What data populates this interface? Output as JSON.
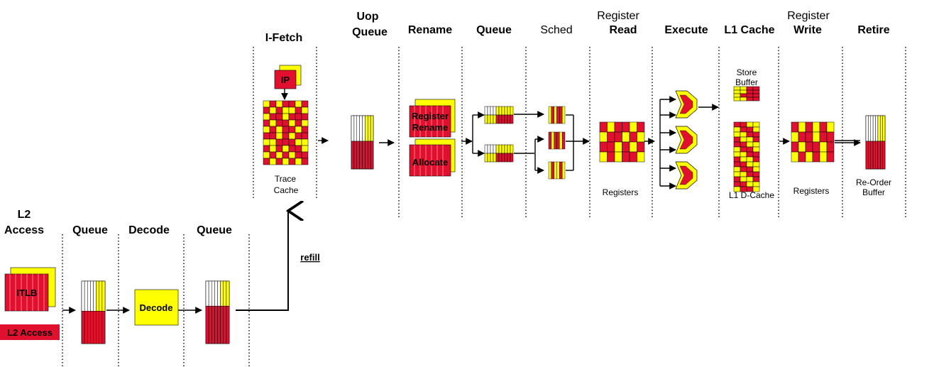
{
  "colors": {
    "red": "#E0102E",
    "yellow": "#FFFF00",
    "line": "#000000"
  },
  "headers": {
    "l2_access": [
      "L2",
      "Access"
    ],
    "queue1": "Queue",
    "decode": "Decode",
    "queue2": "Queue",
    "ifetch": "I-Fetch",
    "uop_queue": [
      "Uop",
      "Queue"
    ],
    "rename": "Rename",
    "queue3": "Queue",
    "sched": "Sched",
    "register_read": [
      "Register",
      "Read"
    ],
    "execute": "Execute",
    "l1_cache": "L1 Cache",
    "register_write": [
      "Register",
      "Write"
    ],
    "retire": "Retire"
  },
  "blocks": {
    "itlb": "ITLB",
    "l2_access_bar": "L2 Access",
    "decode_box": "Decode",
    "ip": "IP",
    "trace_cache": [
      "Trace",
      "Cache"
    ],
    "register_rename": [
      "Register",
      "Rename"
    ],
    "allocate": "Allocate",
    "registers_read": "Registers",
    "store_buffer": [
      "Store",
      "Buffer"
    ],
    "l1_dcache": "L1 D-Cache",
    "registers_write": "Registers",
    "reorder_buffer": [
      "Re-Order",
      "Buffer"
    ]
  },
  "refill_label": "refill"
}
